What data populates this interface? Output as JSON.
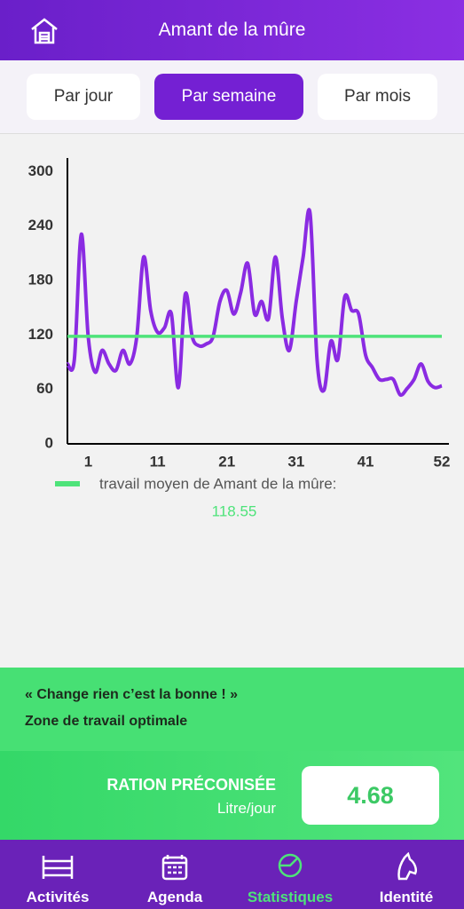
{
  "header": {
    "title": "Amant de la mûre"
  },
  "tabs": {
    "items": [
      "Par jour",
      "Par semaine",
      "Par mois"
    ],
    "selected": 1
  },
  "chart_data": {
    "type": "line",
    "x": [
      -2,
      -1,
      0,
      1,
      2,
      3,
      4,
      5,
      6,
      7,
      8,
      9,
      10,
      11,
      12,
      13,
      14,
      15,
      16,
      17,
      18,
      19,
      20,
      21,
      22,
      23,
      24,
      25,
      26,
      27,
      28,
      29,
      30,
      31,
      32,
      33,
      34,
      35,
      36,
      37,
      38,
      39,
      40,
      41,
      42,
      43,
      44,
      45,
      46,
      47,
      48,
      49,
      50,
      51,
      52
    ],
    "series": [
      {
        "color": "#8a2be2",
        "values": [
          88,
          93,
          231,
          118,
          79,
          103,
          88,
          81,
          103,
          88,
          118,
          206,
          147,
          123,
          128,
          143,
          62,
          165,
          118,
          108,
          110,
          118,
          157,
          169,
          143,
          167,
          199,
          143,
          157,
          138,
          206,
          138,
          103,
          157,
          206,
          254,
          93,
          59,
          113,
          93,
          162,
          147,
          143,
          98,
          84,
          71,
          71,
          71,
          54,
          61,
          71,
          88,
          69,
          62,
          64
        ]
      }
    ],
    "xlim": [
      -2,
      52
    ],
    "xticks": [
      1,
      11,
      21,
      31,
      41,
      52
    ],
    "ylim": [
      0,
      315
    ],
    "yticks": [
      0,
      60,
      120,
      180,
      240,
      300
    ],
    "average": {
      "name": "travail moyen de Amant de la mûre:",
      "value": 118.55,
      "color": "#4ee37a"
    }
  },
  "message": {
    "quote": "« Change rien c’est la bonne ! »",
    "zone": "Zone de travail optimale"
  },
  "ration": {
    "label": "RATION PRÉCONISÉE",
    "unit": "Litre/jour",
    "value": "4.68"
  },
  "nav": {
    "items": [
      "Activités",
      "Agenda",
      "Statistiques",
      "Identité"
    ],
    "active": 2
  }
}
